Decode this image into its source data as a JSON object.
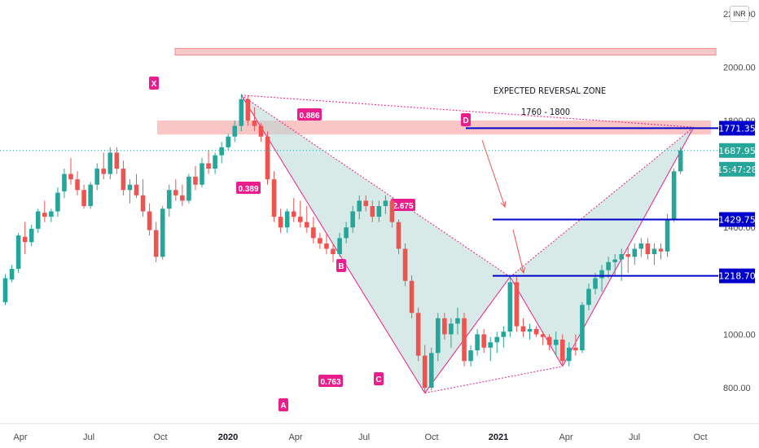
{
  "currency": "INR",
  "colors": {
    "up": "#26a69a",
    "down": "#ef5350",
    "pattern": "#e91e8c",
    "level": "#0000cc",
    "zone": "#f7b2b2",
    "fill": "#b8d8d4"
  },
  "annotations": {
    "zone_title": "EXPECTED REVERSAL ZONE",
    "zone_range": "1760 - 1800"
  },
  "chart_data": {
    "type": "candlestick",
    "title": "",
    "xlabel": "",
    "ylabel": "",
    "x_ticks": [
      "Apr",
      "Jul",
      "Oct",
      "2020",
      "Apr",
      "Jul",
      "Oct",
      "2021",
      "Apr",
      "Jul",
      "Oct"
    ],
    "y_ticks": [
      "800.00",
      "1000.00",
      "1400.00",
      "1800.00",
      "2000.00",
      "2200.00"
    ],
    "ylim": [
      700,
      2260
    ],
    "harmonic_points": [
      {
        "label": "X",
        "value": 1895
      },
      {
        "label": "A",
        "value": 780
      },
      {
        "label": "B",
        "value": 1215
      },
      {
        "label": "C",
        "value": 880
      },
      {
        "label": "D",
        "value": 1775
      }
    ],
    "ratios": [
      "0.886",
      "0.389",
      "2.675",
      "0.763"
    ],
    "price_labels": [
      "1771.35",
      "1687.95",
      "15:47:28",
      "1429.75",
      "1218.70"
    ],
    "levels": [
      1771.35,
      1429.75,
      1218.7
    ],
    "current_price": 1687.95,
    "reversal_zone": [
      1760,
      1800
    ],
    "upper_zone": [
      2045,
      2070
    ],
    "candles": [
      [
        1120,
        1225,
        1110,
        1210
      ],
      [
        1205,
        1260,
        1195,
        1245
      ],
      [
        1245,
        1380,
        1230,
        1370
      ],
      [
        1365,
        1420,
        1300,
        1345
      ],
      [
        1345,
        1410,
        1330,
        1395
      ],
      [
        1395,
        1470,
        1380,
        1460
      ],
      [
        1455,
        1500,
        1420,
        1440
      ],
      [
        1440,
        1470,
        1420,
        1460
      ],
      [
        1460,
        1550,
        1440,
        1530
      ],
      [
        1535,
        1620,
        1510,
        1600
      ],
      [
        1600,
        1660,
        1560,
        1580
      ],
      [
        1580,
        1610,
        1520,
        1540
      ],
      [
        1540,
        1560,
        1470,
        1480
      ],
      [
        1480,
        1570,
        1470,
        1560
      ],
      [
        1560,
        1640,
        1540,
        1620
      ],
      [
        1620,
        1680,
        1580,
        1600
      ],
      [
        1600,
        1700,
        1580,
        1680
      ],
      [
        1680,
        1700,
        1600,
        1620
      ],
      [
        1620,
        1650,
        1520,
        1540
      ],
      [
        1540,
        1580,
        1490,
        1560
      ],
      [
        1560,
        1600,
        1510,
        1520
      ],
      [
        1520,
        1580,
        1440,
        1460
      ],
      [
        1460,
        1490,
        1370,
        1390
      ],
      [
        1390,
        1420,
        1270,
        1290
      ],
      [
        1290,
        1480,
        1280,
        1470
      ],
      [
        1470,
        1560,
        1440,
        1540
      ],
      [
        1540,
        1580,
        1500,
        1520
      ],
      [
        1520,
        1560,
        1480,
        1500
      ],
      [
        1500,
        1600,
        1490,
        1590
      ],
      [
        1590,
        1630,
        1540,
        1560
      ],
      [
        1560,
        1660,
        1550,
        1640
      ],
      [
        1640,
        1690,
        1600,
        1620
      ],
      [
        1620,
        1680,
        1600,
        1670
      ],
      [
        1670,
        1720,
        1640,
        1700
      ],
      [
        1700,
        1750,
        1690,
        1740
      ],
      [
        1740,
        1800,
        1720,
        1780
      ],
      [
        1780,
        1900,
        1760,
        1880
      ],
      [
        1880,
        1895,
        1780,
        1800
      ],
      [
        1800,
        1850,
        1760,
        1780
      ],
      [
        1780,
        1790,
        1720,
        1740
      ],
      [
        1740,
        1760,
        1560,
        1580
      ],
      [
        1580,
        1610,
        1420,
        1440
      ],
      [
        1440,
        1470,
        1380,
        1400
      ],
      [
        1400,
        1470,
        1380,
        1460
      ],
      [
        1460,
        1510,
        1420,
        1440
      ],
      [
        1440,
        1500,
        1400,
        1420
      ],
      [
        1420,
        1480,
        1380,
        1400
      ],
      [
        1400,
        1440,
        1340,
        1360
      ],
      [
        1360,
        1380,
        1320,
        1340
      ],
      [
        1340,
        1380,
        1300,
        1320
      ],
      [
        1320,
        1340,
        1270,
        1300
      ],
      [
        1300,
        1380,
        1290,
        1360
      ],
      [
        1360,
        1420,
        1340,
        1400
      ],
      [
        1400,
        1480,
        1380,
        1460
      ],
      [
        1460,
        1520,
        1430,
        1500
      ],
      [
        1500,
        1520,
        1460,
        1480
      ],
      [
        1480,
        1500,
        1420,
        1440
      ],
      [
        1440,
        1500,
        1420,
        1480
      ],
      [
        1480,
        1520,
        1450,
        1500
      ],
      [
        1500,
        1510,
        1400,
        1420
      ],
      [
        1420,
        1430,
        1300,
        1320
      ],
      [
        1320,
        1340,
        1180,
        1200
      ],
      [
        1200,
        1220,
        1060,
        1080
      ],
      [
        1080,
        1100,
        900,
        920
      ],
      [
        920,
        960,
        780,
        800
      ],
      [
        800,
        950,
        790,
        930
      ],
      [
        930,
        1080,
        900,
        1060
      ],
      [
        1060,
        1080,
        980,
        1000
      ],
      [
        1000,
        1060,
        950,
        1040
      ],
      [
        1040,
        1100,
        1000,
        1060
      ],
      [
        1060,
        1080,
        880,
        900
      ],
      [
        900,
        960,
        880,
        940
      ],
      [
        940,
        1020,
        920,
        1000
      ],
      [
        1000,
        1020,
        930,
        950
      ],
      [
        950,
        990,
        900,
        970
      ],
      [
        970,
        1010,
        930,
        990
      ],
      [
        990,
        1030,
        950,
        1010
      ],
      [
        1010,
        1215,
        990,
        1195
      ],
      [
        1195,
        1215,
        1010,
        1030
      ],
      [
        1030,
        1060,
        990,
        1010
      ],
      [
        1010,
        1040,
        980,
        1020
      ],
      [
        1020,
        1030,
        990,
        1000
      ],
      [
        1000,
        1010,
        960,
        990
      ],
      [
        990,
        1000,
        940,
        960
      ],
      [
        960,
        1010,
        920,
        980
      ],
      [
        980,
        1000,
        880,
        900
      ],
      [
        900,
        970,
        880,
        950
      ],
      [
        950,
        1000,
        920,
        940
      ],
      [
        940,
        1120,
        930,
        1110
      ],
      [
        1110,
        1190,
        1090,
        1170
      ],
      [
        1170,
        1230,
        1150,
        1210
      ],
      [
        1210,
        1260,
        1160,
        1240
      ],
      [
        1240,
        1290,
        1210,
        1270
      ],
      [
        1270,
        1300,
        1220,
        1280
      ],
      [
        1280,
        1320,
        1200,
        1300
      ],
      [
        1300,
        1330,
        1230,
        1290
      ],
      [
        1290,
        1340,
        1260,
        1320
      ],
      [
        1320,
        1360,
        1290,
        1340
      ],
      [
        1340,
        1360,
        1280,
        1300
      ],
      [
        1300,
        1340,
        1260,
        1320
      ],
      [
        1320,
        1340,
        1280,
        1310
      ],
      [
        1310,
        1450,
        1290,
        1430
      ],
      [
        1430,
        1620,
        1420,
        1610
      ],
      [
        1610,
        1700,
        1600,
        1688
      ]
    ]
  }
}
